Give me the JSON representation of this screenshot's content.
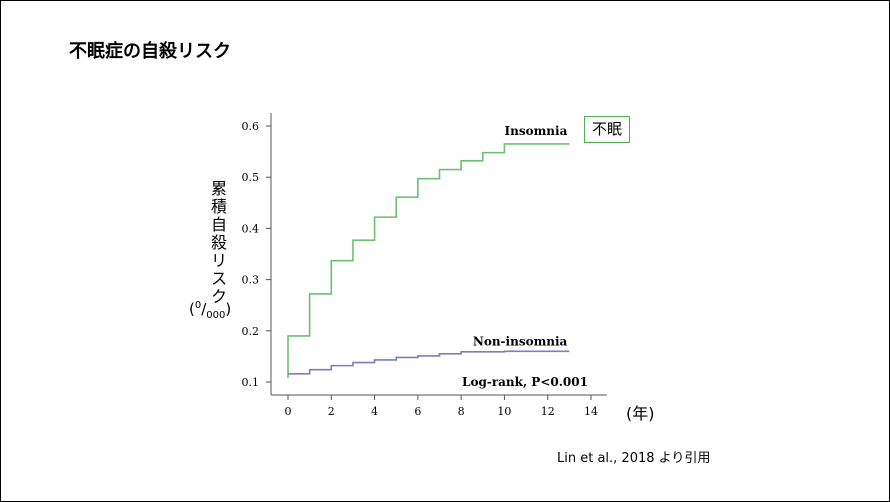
{
  "slide": {
    "title": "不眠症の自殺リスク",
    "citation": "Lin et al., 2018 より引用"
  },
  "chart_data": {
    "type": "line",
    "step": true,
    "ylabel": "累積自殺リスク",
    "yunit": {
      "open": "(",
      "sup": "0",
      "slash": "/",
      "sub": "000",
      "close": ")"
    },
    "xunit": "(年)",
    "xlim": [
      0,
      14
    ],
    "ylim": [
      0.1,
      0.6
    ],
    "xticks": [
      0,
      2,
      4,
      6,
      8,
      10,
      12,
      14
    ],
    "yticks": [
      0.1,
      0.2,
      0.3,
      0.4,
      0.5,
      0.6
    ],
    "series": [
      {
        "name": "Insomnia",
        "color": "#6fbf73",
        "x": [
          0,
          0,
          1,
          2,
          3,
          4,
          5,
          6,
          7,
          8,
          9,
          10,
          13
        ],
        "y": [
          0.108,
          0.19,
          0.272,
          0.337,
          0.377,
          0.422,
          0.461,
          0.497,
          0.515,
          0.532,
          0.548,
          0.565,
          0.565
        ]
      },
      {
        "name": "Non-insomnia",
        "color": "#7e7eb8",
        "x": [
          0,
          1,
          2,
          3,
          4,
          5,
          6,
          7,
          8,
          10,
          13
        ],
        "y": [
          0.116,
          0.124,
          0.132,
          0.138,
          0.143,
          0.148,
          0.151,
          0.155,
          0.159,
          0.16,
          0.16
        ]
      }
    ],
    "annotations": [
      "Log-rank, P<0.001"
    ],
    "callout": "不眠",
    "grid": false
  }
}
